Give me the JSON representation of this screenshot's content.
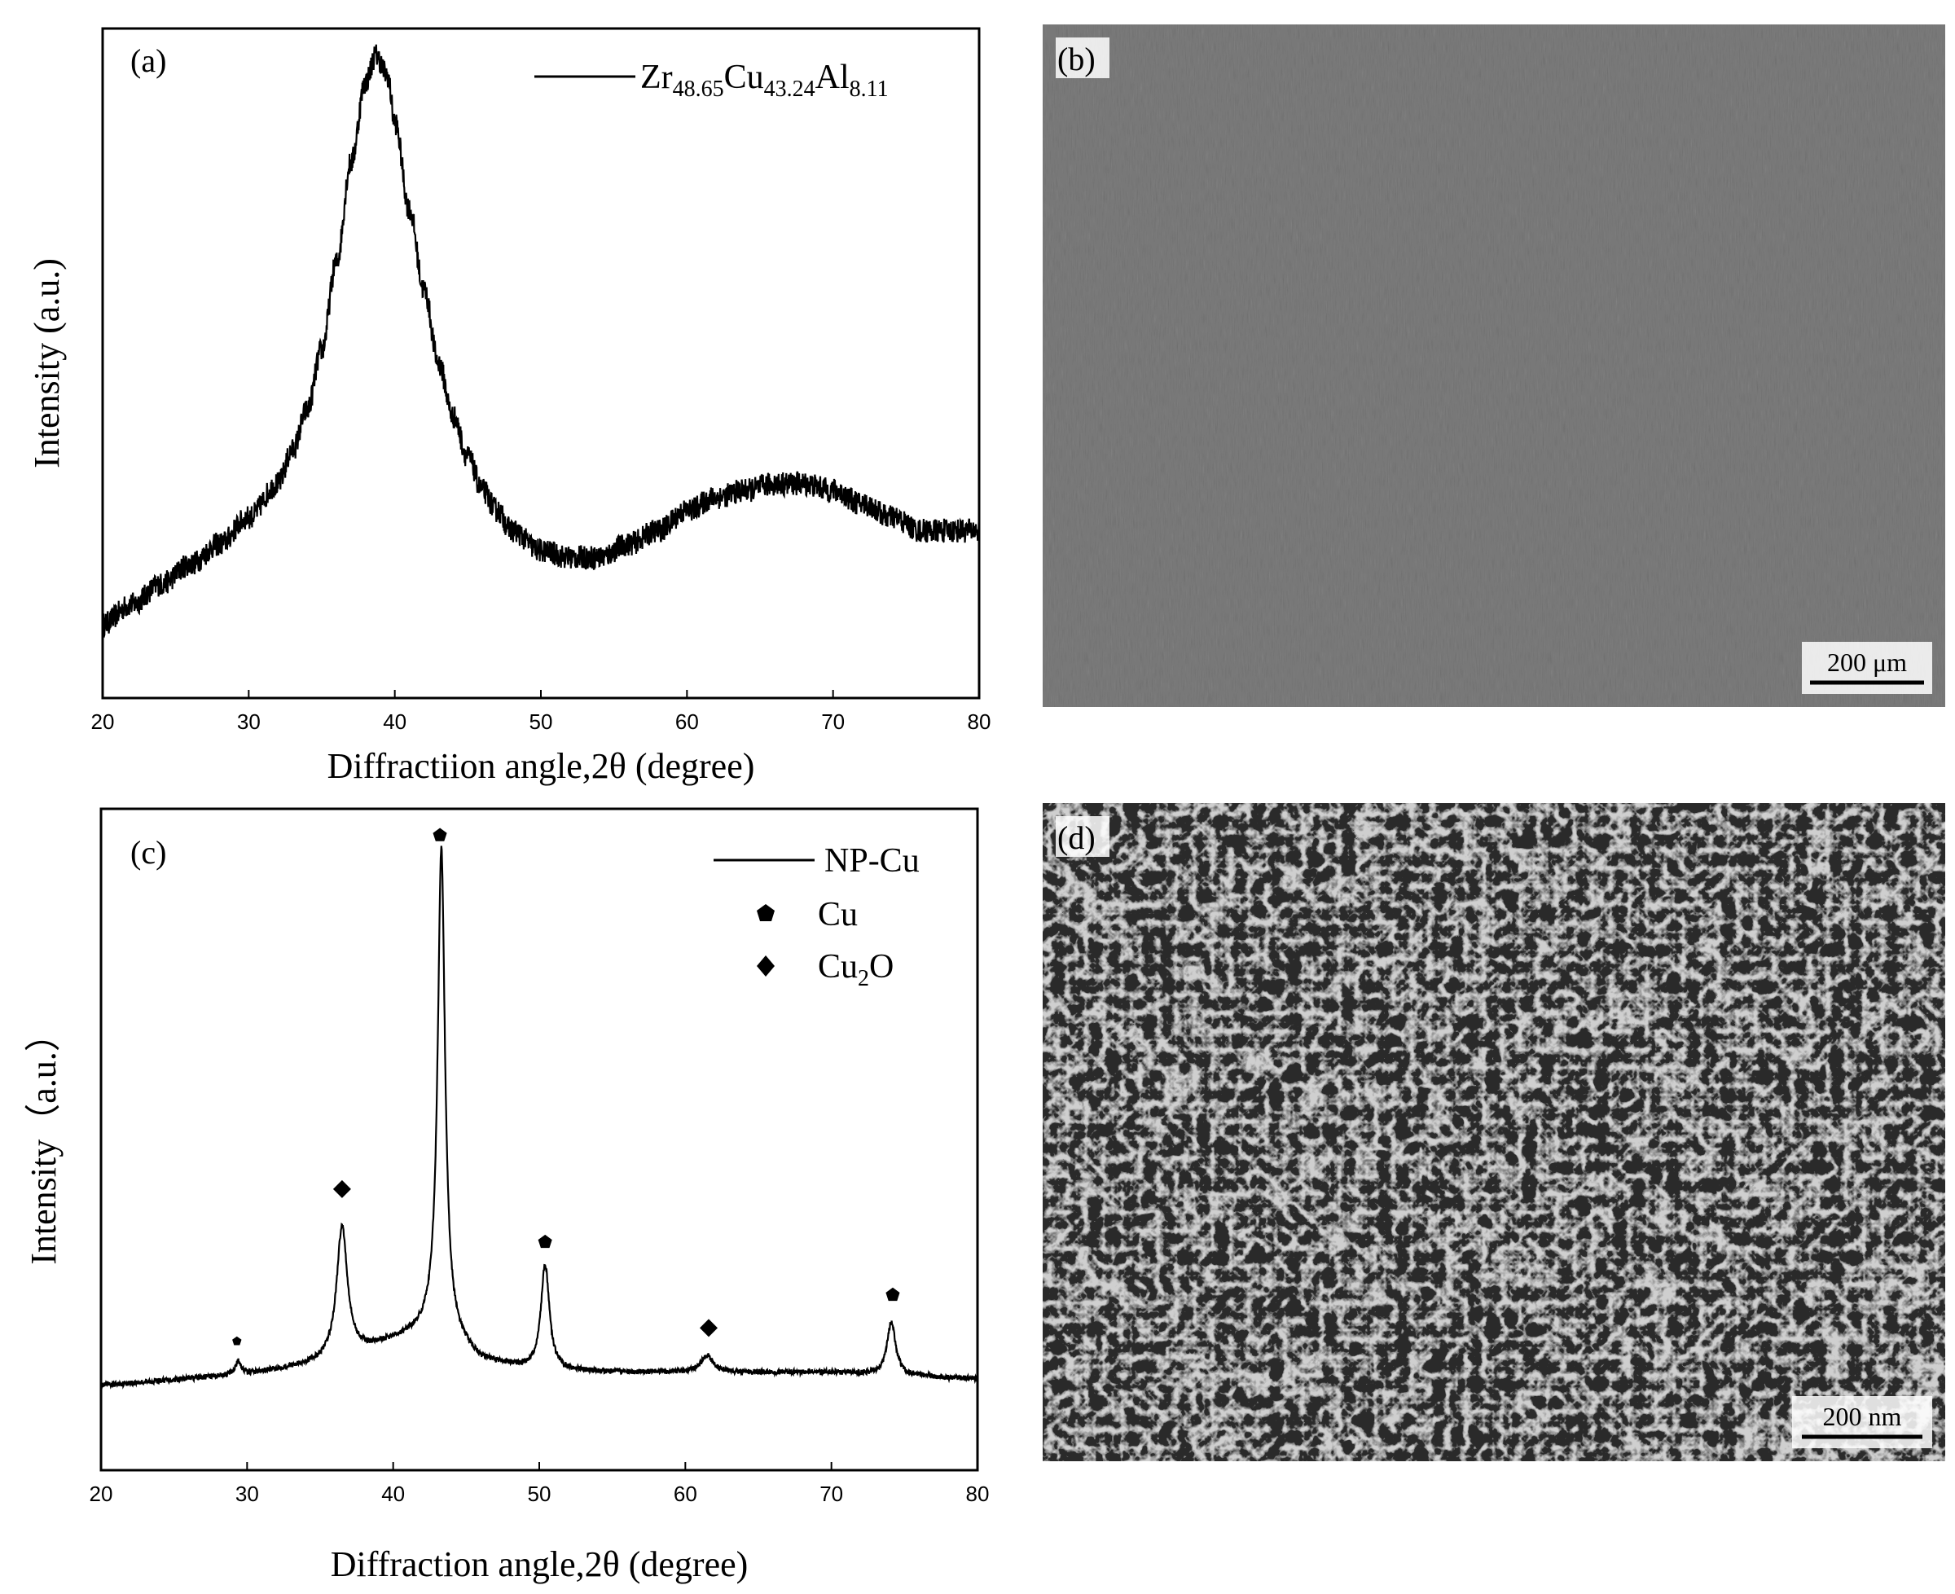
{
  "panels": {
    "a": "(a)",
    "b": "(b)",
    "c": "(c)",
    "d": "(d)"
  },
  "chart_data": [
    {
      "panel": "(a)",
      "type": "line",
      "xlabel": "Diffractiion angle,2θ (degree)",
      "ylabel": "Intensity (a.u.)",
      "xlim": [
        20,
        80
      ],
      "ylim": [
        0,
        1
      ],
      "xticks": [
        20,
        30,
        40,
        50,
        60,
        70,
        80
      ],
      "y_tick_labels": false,
      "legend": {
        "position": "top-right",
        "entries": [
          {
            "name_parts": [
              {
                "text": "Zr",
                "sub": false
              },
              {
                "text": "48.65",
                "sub": true
              },
              {
                "text": "Cu",
                "sub": false
              },
              {
                "text": "43.24",
                "sub": true
              },
              {
                "text": "Al",
                "sub": false
              },
              {
                "text": "8.11",
                "sub": true
              }
            ],
            "marker": "line"
          }
        ]
      },
      "series": [
        {
          "x": [
            20,
            22,
            24,
            26,
            28,
            30,
            32,
            33,
            34,
            35,
            36,
            37,
            38,
            38.7,
            39.5,
            40,
            41,
            42,
            43,
            44,
            45,
            46,
            47,
            48,
            50,
            52,
            54,
            56,
            58,
            60,
            62,
            64,
            66,
            68,
            70,
            72,
            74,
            76,
            78,
            80
          ],
          "y": [
            0.11,
            0.14,
            0.17,
            0.2,
            0.23,
            0.27,
            0.32,
            0.37,
            0.43,
            0.52,
            0.65,
            0.8,
            0.92,
            0.96,
            0.93,
            0.86,
            0.73,
            0.61,
            0.5,
            0.42,
            0.36,
            0.31,
            0.28,
            0.25,
            0.22,
            0.21,
            0.21,
            0.23,
            0.25,
            0.28,
            0.3,
            0.31,
            0.32,
            0.32,
            0.31,
            0.29,
            0.27,
            0.25,
            0.25,
            0.25
          ],
          "noise": 0.018
        }
      ],
      "color": "#000000"
    },
    {
      "panel": "(c)",
      "type": "line",
      "xlabel": "Diffraction angle,2θ (degree)",
      "ylabel": "Intensity（a.u.）",
      "xlim": [
        20,
        80
      ],
      "ylim": [
        0,
        1
      ],
      "xticks": [
        20,
        30,
        40,
        50,
        60,
        70,
        80
      ],
      "y_tick_labels": false,
      "legend": {
        "position": "top-right",
        "entries": [
          {
            "name": "NP-Cu",
            "marker": "line"
          },
          {
            "name": "Cu",
            "marker": "pentagon"
          },
          {
            "name_parts": [
              {
                "text": "Cu",
                "sub": false
              },
              {
                "text": "2",
                "sub": true
              },
              {
                "text": "O",
                "sub": false
              }
            ],
            "marker": "diamond"
          }
        ]
      },
      "series": [
        {
          "baseline": [
            [
              20,
              0.128
            ],
            [
              30,
              0.145
            ],
            [
              36,
              0.165
            ],
            [
              40,
              0.195
            ],
            [
              43,
              0.215
            ],
            [
              46,
              0.165
            ],
            [
              50,
              0.15
            ],
            [
              55,
              0.148
            ],
            [
              60,
              0.148
            ],
            [
              70,
              0.148
            ],
            [
              80,
              0.138
            ]
          ],
          "peaks": [
            {
              "x": 29.4,
              "height": 0.02,
              "width": 0.25
            },
            {
              "x": 36.5,
              "height": 0.2,
              "width": 0.45
            },
            {
              "x": 43.3,
              "height": 0.73,
              "width": 0.3
            },
            {
              "x": 50.4,
              "height": 0.16,
              "width": 0.35
            },
            {
              "x": 61.5,
              "height": 0.025,
              "width": 0.5
            },
            {
              "x": 74.1,
              "height": 0.08,
              "width": 0.35
            }
          ],
          "noise": 0.004
        }
      ],
      "peak_markers": [
        {
          "x": 29.3,
          "y": 0.195,
          "symbol": "pentagon",
          "phase": "Cu"
        },
        {
          "x": 36.5,
          "y": 0.425,
          "symbol": "diamond",
          "phase": "Cu2O"
        },
        {
          "x": 43.2,
          "y": 0.96,
          "symbol": "pentagon",
          "phase": "Cu"
        },
        {
          "x": 50.4,
          "y": 0.345,
          "symbol": "pentagon",
          "phase": "Cu"
        },
        {
          "x": 61.6,
          "y": 0.215,
          "symbol": "diamond",
          "phase": "Cu2O"
        },
        {
          "x": 74.2,
          "y": 0.265,
          "symbol": "pentagon",
          "phase": "Cu"
        }
      ],
      "color": "#000000"
    }
  ],
  "images": {
    "b": {
      "description": "SEM micrograph, uniform grey surface",
      "scale_bar": "200 μm",
      "tone": "#8a8a8a"
    },
    "d": {
      "description": "SEM micrograph of nanoporous copper ligament network",
      "scale_bar": "200 nm",
      "tone": "#6b6b6b"
    }
  }
}
